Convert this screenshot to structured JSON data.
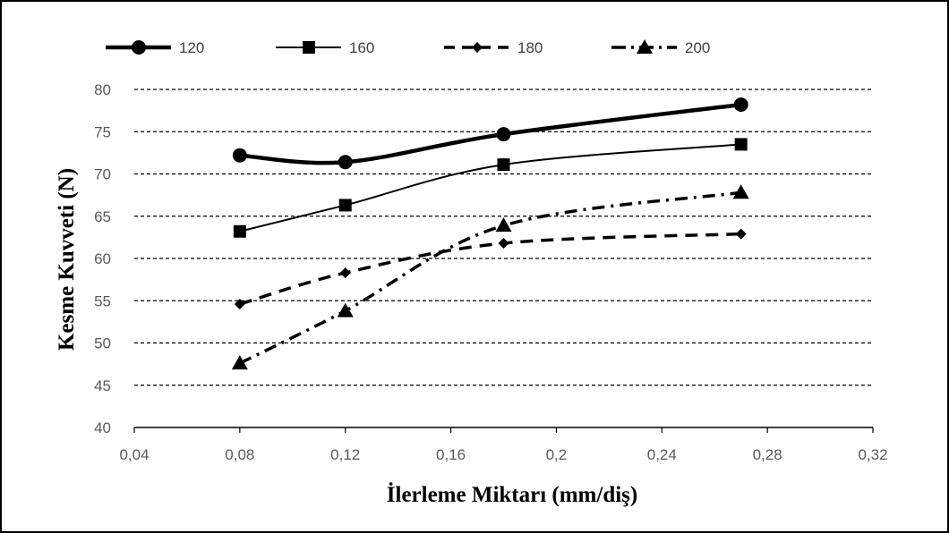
{
  "chart_data": {
    "type": "line",
    "title": "",
    "xlabel": "İlerleme Miktarı (mm/diş)",
    "ylabel": "Kesme Kuvveti (N)",
    "xlim": [
      0.04,
      0.32
    ],
    "ylim": [
      40,
      80
    ],
    "x_ticks": [
      0.04,
      0.08,
      0.12,
      0.16,
      0.2,
      0.24,
      0.28,
      0.32
    ],
    "x_tick_labels": [
      "0,04",
      "0,08",
      "0,12",
      "0,16",
      "0,2",
      "0,24",
      "0,28",
      "0,32"
    ],
    "y_ticks": [
      40,
      45,
      50,
      55,
      60,
      65,
      70,
      75,
      80
    ],
    "y_tick_labels": [
      "40",
      "45",
      "50",
      "55",
      "60",
      "65",
      "70",
      "75",
      "80"
    ],
    "grid": "horizontal dashed",
    "legend_position": "top",
    "x": [
      0.08,
      0.12,
      0.18,
      0.27
    ],
    "series": [
      {
        "name": "120",
        "values": [
          72.2,
          71.4,
          74.7,
          78.2
        ],
        "marker": "circle",
        "line_style": "solid-thick",
        "color": "#000000"
      },
      {
        "name": "160",
        "values": [
          63.2,
          66.3,
          71.1,
          73.5
        ],
        "marker": "square",
        "line_style": "solid",
        "color": "#000000"
      },
      {
        "name": "180",
        "values": [
          54.6,
          58.3,
          61.8,
          62.9
        ],
        "marker": "diamond",
        "line_style": "dashed",
        "color": "#000000"
      },
      {
        "name": "200",
        "values": [
          47.6,
          53.8,
          63.9,
          67.8
        ],
        "marker": "triangle",
        "line_style": "dash-dot",
        "color": "#000000"
      }
    ]
  }
}
